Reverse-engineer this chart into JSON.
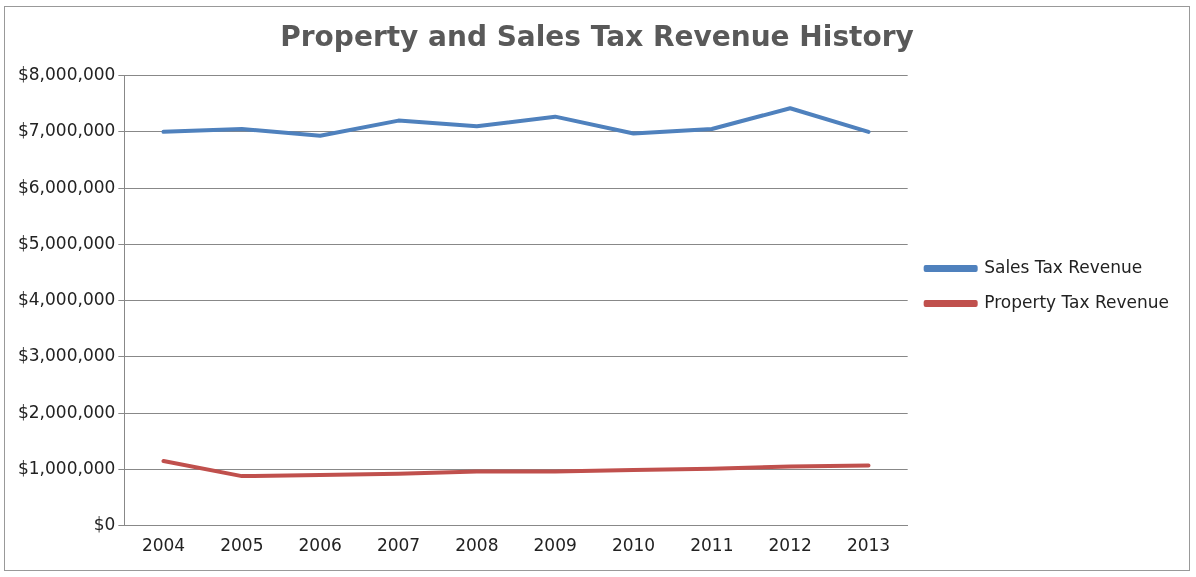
{
  "chart_data": {
    "type": "line",
    "title": "Property and Sales Tax Revenue History",
    "categories": [
      "2004",
      "2005",
      "2006",
      "2007",
      "2008",
      "2009",
      "2010",
      "2011",
      "2012",
      "2013"
    ],
    "series": [
      {
        "name": "Sales Tax Revenue",
        "color": "#4f81bd",
        "values": [
          7000000,
          7050000,
          6930000,
          7200000,
          7100000,
          7270000,
          6970000,
          7050000,
          7420000,
          7000000
        ]
      },
      {
        "name": "Property Tax Revenue",
        "color": "#c0504d",
        "values": [
          1150000,
          880000,
          900000,
          920000,
          960000,
          960000,
          990000,
          1010000,
          1050000,
          1070000
        ]
      }
    ],
    "ylim": [
      0,
      8000000
    ],
    "yticks": [
      {
        "value": 0,
        "label": "$0"
      },
      {
        "value": 1000000,
        "label": "$1,000,000"
      },
      {
        "value": 2000000,
        "label": "$2,000,000"
      },
      {
        "value": 3000000,
        "label": "$3,000,000"
      },
      {
        "value": 4000000,
        "label": "$4,000,000"
      },
      {
        "value": 5000000,
        "label": "$5,000,000"
      },
      {
        "value": 6000000,
        "label": "$6,000,000"
      },
      {
        "value": 7000000,
        "label": "$7,000,000"
      },
      {
        "value": 8000000,
        "label": "$8,000,000"
      }
    ],
    "grid": "y",
    "legend": "right",
    "marker": "none",
    "line_style": "solid"
  }
}
